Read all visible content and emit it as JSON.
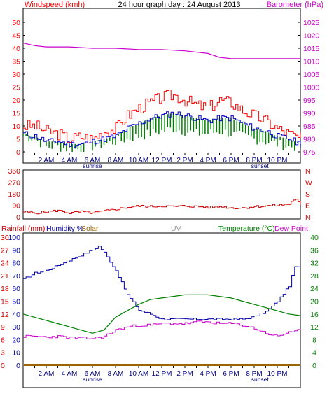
{
  "colors": {
    "wind_gust": "#ff0000",
    "wind_avg": "#0000cc",
    "wind_min": "#008000",
    "barometer": "#cc00cc",
    "rain": "#cc0000",
    "humidity": "#0000aa",
    "solar": "#996600",
    "uv": "#999999",
    "temperature": "#008000",
    "dew_point": "#cc00cc",
    "wind_dir": "#cc0000",
    "frame": "#000000"
  },
  "chart_data": [
    {
      "type": "line",
      "panel": "wind_baro",
      "title": "24 hour graph day : 24 August 2013",
      "ylabel_left": "Windspeed (kmh)",
      "ylabel_right": "Barometer (hPa)",
      "ylim_left": [
        0,
        50
      ],
      "yticks_left": [
        "0",
        "5",
        "10",
        "15",
        "20",
        "25",
        "30",
        "35",
        "40",
        "45",
        "50"
      ],
      "ylim_right": [
        975,
        1025
      ],
      "yticks_right": [
        "975",
        "980",
        "985",
        "990",
        "995",
        "1000",
        "1005",
        "1010",
        "1015",
        "1020",
        "1025"
      ],
      "x_tick_labels": [
        "2 AM",
        "4 AM",
        "6 AM",
        "8 AM",
        "10 AM",
        "12 PM",
        "2 PM",
        "4 PM",
        "6 PM",
        "8 PM",
        "10 PM"
      ],
      "x_hours": [
        2,
        4,
        6,
        8,
        10,
        12,
        14,
        16,
        18,
        20,
        22
      ],
      "annotations": [
        {
          "text": "sunrise",
          "x_hour": 6
        },
        {
          "text": "sunset",
          "x_hour": 20.5
        }
      ],
      "x_range": [
        0,
        24
      ],
      "series": [
        {
          "name": "Wind gust",
          "axis": "left",
          "x": [
            0,
            1,
            2,
            3,
            4,
            5,
            6,
            7,
            8,
            9,
            10,
            11,
            12,
            13,
            14,
            15,
            16,
            17,
            18,
            19,
            20,
            21,
            22,
            23,
            24
          ],
          "values": [
            10,
            10,
            8,
            7,
            5,
            6,
            5,
            8,
            9,
            14,
            17,
            19,
            21,
            22,
            20,
            18,
            17,
            20,
            19,
            16,
            14,
            12,
            9,
            7,
            5
          ]
        },
        {
          "name": "Wind average",
          "axis": "left",
          "x": [
            0,
            1,
            2,
            3,
            4,
            5,
            6,
            7,
            8,
            9,
            10,
            11,
            12,
            13,
            14,
            15,
            16,
            17,
            18,
            19,
            20,
            21,
            22,
            23,
            24
          ],
          "values": [
            7,
            6,
            4,
            4,
            3,
            3,
            4,
            5,
            6,
            9,
            11,
            13,
            14,
            15,
            14,
            13,
            12,
            13,
            13,
            11,
            9,
            8,
            6,
            5,
            3
          ]
        },
        {
          "name": "Wind lull",
          "axis": "left",
          "x": [
            0,
            1,
            2,
            3,
            4,
            5,
            6,
            7,
            8,
            9,
            10,
            11,
            12,
            13,
            14,
            15,
            16,
            17,
            18,
            19,
            20,
            21,
            22,
            23,
            24
          ],
          "values": [
            6,
            5,
            2,
            2,
            1,
            1,
            2,
            3,
            4,
            5,
            6,
            7,
            8,
            9,
            8,
            7,
            7,
            8,
            7,
            6,
            5,
            4,
            3,
            2,
            2
          ]
        },
        {
          "name": "Barometer",
          "axis": "right",
          "x": [
            0,
            1,
            2,
            4,
            6,
            8,
            10,
            12,
            14,
            16,
            17,
            18,
            20,
            22,
            24
          ],
          "values": [
            1017,
            1016,
            1015.5,
            1015.5,
            1015,
            1015,
            1014.5,
            1014.5,
            1014,
            1013,
            1011.5,
            1011,
            1011,
            1011,
            1011
          ]
        }
      ]
    },
    {
      "type": "line",
      "panel": "wind_direction",
      "ylim": [
        0,
        360
      ],
      "yticks_left": [
        "0",
        "90",
        "180",
        "270",
        "360"
      ],
      "yticks_right": [
        "N",
        "E",
        "S",
        "W",
        "N"
      ],
      "series": [
        {
          "name": "Wind direction",
          "x": [
            0,
            1,
            2,
            3,
            4,
            5,
            6,
            7,
            8,
            9,
            10,
            11,
            12,
            13,
            14,
            15,
            16,
            17,
            18,
            19,
            20,
            21,
            22,
            23,
            23.5,
            24
          ],
          "values": [
            40,
            30,
            40,
            50,
            30,
            40,
            30,
            45,
            60,
            75,
            85,
            80,
            85,
            80,
            85,
            80,
            75,
            80,
            70,
            70,
            80,
            85,
            90,
            100,
            145,
            90
          ]
        }
      ]
    },
    {
      "type": "line",
      "panel": "temp_hum_rain",
      "headers": [
        "Rainfall (mm)",
        "Humidity %",
        "Solar",
        "UV",
        "Temperature (°C)",
        "Dew Point"
      ],
      "yticks_rain": [
        "0",
        "3",
        "6",
        "9",
        "12",
        "15",
        "18",
        "21",
        "24",
        "27",
        "30"
      ],
      "yticks_humidity": [
        "0",
        "10",
        "20",
        "30",
        "40",
        "50",
        "60",
        "70",
        "80",
        "90",
        "100"
      ],
      "yticks_temperature": [
        "0",
        "4",
        "8",
        "12",
        "16",
        "20",
        "24",
        "28",
        "32",
        "36",
        "40"
      ],
      "ylim_temperature": [
        0,
        40
      ],
      "ylim_humidity": [
        0,
        100
      ],
      "series": [
        {
          "name": "Humidity",
          "axis": "humidity",
          "x": [
            0,
            1,
            2,
            3,
            4,
            5,
            6,
            6.5,
            7,
            8,
            9,
            10,
            11,
            12,
            13,
            14,
            15,
            16,
            17,
            18,
            19,
            20,
            21,
            22,
            23,
            23.5,
            24
          ],
          "values": [
            67,
            72,
            74,
            78,
            82,
            86,
            90,
            93,
            88,
            74,
            55,
            43,
            40,
            36,
            36,
            36,
            36,
            36,
            36,
            36,
            36,
            38,
            42,
            50,
            62,
            77,
            76
          ]
        },
        {
          "name": "Temperature",
          "axis": "temperature",
          "x": [
            0,
            1,
            2,
            3,
            4,
            5,
            6,
            7,
            8,
            9,
            10,
            11,
            12,
            13,
            14,
            15,
            16,
            17,
            18,
            19,
            20,
            21,
            22,
            23,
            24
          ],
          "values": [
            16,
            15,
            14,
            13,
            12,
            11,
            10,
            11,
            15,
            17,
            19,
            20.5,
            21,
            21.5,
            22,
            22,
            22,
            21.5,
            21,
            20,
            19,
            18,
            17,
            16,
            15.5
          ]
        },
        {
          "name": "Dew Point",
          "axis": "temperature",
          "x": [
            0,
            1,
            2,
            3,
            4,
            5,
            6,
            7,
            8,
            9,
            10,
            11,
            12,
            13,
            14,
            15,
            16,
            17,
            18,
            19,
            20,
            21,
            22,
            23,
            24
          ],
          "values": [
            9,
            9,
            8.8,
            9,
            8.6,
            8.4,
            8.4,
            9,
            11,
            12,
            12.5,
            12.5,
            13,
            13,
            13,
            13.5,
            13.5,
            13,
            13,
            12.5,
            11.5,
            10,
            9,
            10.5,
            11
          ]
        },
        {
          "name": "Rainfall",
          "axis": "rain",
          "x": [
            0,
            24
          ],
          "values": [
            0,
            0
          ]
        },
        {
          "name": "Solar",
          "axis": "humidity",
          "x": [
            0,
            24
          ],
          "values": [
            0,
            0
          ]
        }
      ],
      "x_tick_labels": [
        "2 AM",
        "4 AM",
        "6 AM",
        "8 AM",
        "10 AM",
        "12 PM",
        "2 PM",
        "4 PM",
        "6 PM",
        "8 PM",
        "10 PM"
      ],
      "annotations": [
        {
          "text": "sunrise",
          "x_hour": 6
        },
        {
          "text": "sunset",
          "x_hour": 20.5
        }
      ]
    }
  ]
}
